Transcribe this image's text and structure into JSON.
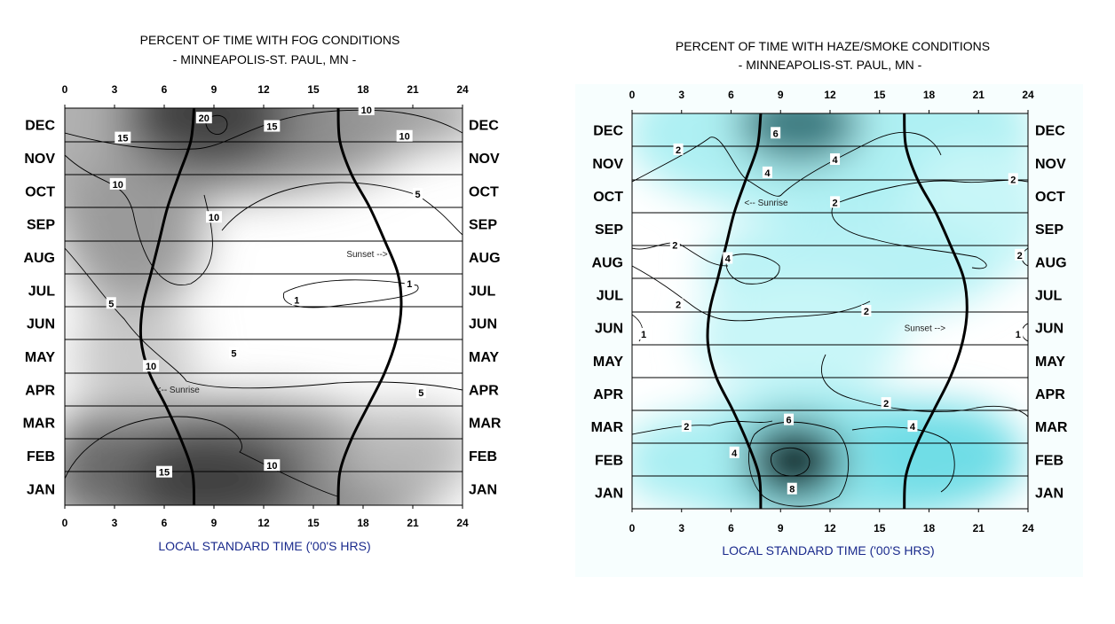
{
  "colors": {
    "fog_dark": "#303030",
    "fog_light": "#ffffff",
    "haze_dark": "#0a0a0a",
    "haze_mid": "#8ee8ee",
    "haze_light": "#ffffff",
    "title_color": "#000000",
    "xlabel_color": "#1a2a8c"
  },
  "chart_data": [
    {
      "type": "heatmap",
      "title": "PERCENT OF TIME WITH FOG CONDITIONS",
      "subtitle": "- MINNEAPOLIS-ST. PAUL,  MN -",
      "xlabel": "LOCAL STANDARD TIME ('00'S HRS)",
      "ylabel": "",
      "x_ticks": [
        "0",
        "3",
        "6",
        "9",
        "12",
        "15",
        "18",
        "21",
        "24"
      ],
      "xlim": [
        0,
        24
      ],
      "months": [
        "DEC",
        "NOV",
        "OCT",
        "SEP",
        "AUG",
        "JUL",
        "JUN",
        "MAY",
        "APR",
        "MAR",
        "FEB",
        "JAN"
      ],
      "contour_labels": [
        {
          "text": "20",
          "x": 8.4,
          "m": 0.3
        },
        {
          "text": "15",
          "x": 3.5,
          "m": 0.9
        },
        {
          "text": "15",
          "x": 12.5,
          "m": 0.55
        },
        {
          "text": "10",
          "x": 18.2,
          "m": 0.05
        },
        {
          "text": "10",
          "x": 20.5,
          "m": 0.85
        },
        {
          "text": "10",
          "x": 3.2,
          "m": 2.3
        },
        {
          "text": "10",
          "x": 9.0,
          "m": 3.3
        },
        {
          "text": "5",
          "x": 21.3,
          "m": 2.6
        },
        {
          "text": "1",
          "x": 20.8,
          "m": 5.3
        },
        {
          "text": "1",
          "x": 14.0,
          "m": 5.8
        },
        {
          "text": "5",
          "x": 2.8,
          "m": 5.9
        },
        {
          "text": "5",
          "x": 10.2,
          "m": 7.4
        },
        {
          "text": "10",
          "x": 5.2,
          "m": 7.8
        },
        {
          "text": "5",
          "x": 21.5,
          "m": 8.6
        },
        {
          "text": "10",
          "x": 12.5,
          "m": 10.8
        },
        {
          "text": "15",
          "x": 6.0,
          "m": 11.0
        }
      ],
      "sunrise_label": "<-- Sunrise",
      "sunrise_label_pos": {
        "x": 5.5,
        "m": 8.6
      },
      "sunset_label": "Sunset -->",
      "sunset_label_pos": {
        "x": 17.0,
        "m": 4.5
      },
      "sunrise_curve": [
        {
          "m": 0,
          "x": 7.8
        },
        {
          "m": 1,
          "x": 7.6
        },
        {
          "m": 2,
          "x": 6.9
        },
        {
          "m": 3,
          "x": 6.2
        },
        {
          "m": 4,
          "x": 5.7
        },
        {
          "m": 5,
          "x": 5.2
        },
        {
          "m": 6,
          "x": 4.7
        },
        {
          "m": 7,
          "x": 4.6
        },
        {
          "m": 8,
          "x": 5.1
        },
        {
          "m": 9,
          "x": 6.1
        },
        {
          "m": 10,
          "x": 7.0
        },
        {
          "m": 11,
          "x": 7.7
        },
        {
          "m": 12,
          "x": 7.8
        }
      ],
      "sunset_curve": [
        {
          "m": 0,
          "x": 16.5
        },
        {
          "m": 1,
          "x": 16.6
        },
        {
          "m": 2,
          "x": 17.3
        },
        {
          "m": 3,
          "x": 18.4
        },
        {
          "m": 4,
          "x": 19.3
        },
        {
          "m": 5,
          "x": 20.1
        },
        {
          "m": 6,
          "x": 20.3
        },
        {
          "m": 7,
          "x": 20.0
        },
        {
          "m": 8,
          "x": 19.3
        },
        {
          "m": 9,
          "x": 18.3
        },
        {
          "m": 10,
          "x": 17.3
        },
        {
          "m": 11,
          "x": 16.6
        },
        {
          "m": 12,
          "x": 16.5
        }
      ]
    },
    {
      "type": "heatmap",
      "title": "PERCENT OF TIME WITH HAZE/SMOKE CONDITIONS",
      "subtitle": "- MINNEAPOLIS-ST. PAUL,  MN -",
      "xlabel": "LOCAL STANDARD TIME ('00'S HRS)",
      "ylabel": "",
      "x_ticks": [
        "0",
        "3",
        "6",
        "9",
        "12",
        "15",
        "18",
        "21",
        "24"
      ],
      "xlim": [
        0,
        24
      ],
      "months": [
        "DEC",
        "NOV",
        "OCT",
        "SEP",
        "AUG",
        "JUL",
        "JUN",
        "MAY",
        "APR",
        "MAR",
        "FEB",
        "JAN"
      ],
      "contour_labels": [
        {
          "text": "6",
          "x": 8.7,
          "m": 0.6
        },
        {
          "text": "2",
          "x": 2.8,
          "m": 1.1
        },
        {
          "text": "4",
          "x": 12.3,
          "m": 1.4
        },
        {
          "text": "4",
          "x": 8.2,
          "m": 1.8
        },
        {
          "text": "2",
          "x": 23.1,
          "m": 2.0
        },
        {
          "text": "2",
          "x": 12.3,
          "m": 2.7
        },
        {
          "text": "2",
          "x": 2.6,
          "m": 4.0
        },
        {
          "text": "4",
          "x": 5.8,
          "m": 4.4
        },
        {
          "text": "2",
          "x": 23.5,
          "m": 4.3
        },
        {
          "text": "2",
          "x": 2.8,
          "m": 5.8
        },
        {
          "text": "2",
          "x": 14.2,
          "m": 6.0
        },
        {
          "text": "1",
          "x": 0.7,
          "m": 6.7
        },
        {
          "text": "1",
          "x": 23.4,
          "m": 6.7
        },
        {
          "text": "2",
          "x": 15.4,
          "m": 8.8
        },
        {
          "text": "2",
          "x": 3.3,
          "m": 9.5
        },
        {
          "text": "6",
          "x": 9.5,
          "m": 9.3
        },
        {
          "text": "4",
          "x": 17.0,
          "m": 9.5
        },
        {
          "text": "4",
          "x": 6.2,
          "m": 10.3
        },
        {
          "text": "8",
          "x": 9.7,
          "m": 11.4
        }
      ],
      "sunrise_label": "<-- Sunrise",
      "sunrise_label_pos": {
        "x": 6.8,
        "m": 2.8
      },
      "sunset_label": "Sunset -->",
      "sunset_label_pos": {
        "x": 16.5,
        "m": 6.6
      },
      "sunrise_curve": [
        {
          "m": 0,
          "x": 7.8
        },
        {
          "m": 1,
          "x": 7.6
        },
        {
          "m": 2,
          "x": 6.9
        },
        {
          "m": 3,
          "x": 6.2
        },
        {
          "m": 4,
          "x": 5.7
        },
        {
          "m": 5,
          "x": 5.2
        },
        {
          "m": 6,
          "x": 4.7
        },
        {
          "m": 7,
          "x": 4.6
        },
        {
          "m": 8,
          "x": 5.1
        },
        {
          "m": 9,
          "x": 6.1
        },
        {
          "m": 10,
          "x": 7.0
        },
        {
          "m": 11,
          "x": 7.7
        },
        {
          "m": 12,
          "x": 7.8
        }
      ],
      "sunset_curve": [
        {
          "m": 0,
          "x": 16.5
        },
        {
          "m": 1,
          "x": 16.6
        },
        {
          "m": 2,
          "x": 17.3
        },
        {
          "m": 3,
          "x": 18.4
        },
        {
          "m": 4,
          "x": 19.3
        },
        {
          "m": 5,
          "x": 20.1
        },
        {
          "m": 6,
          "x": 20.3
        },
        {
          "m": 7,
          "x": 20.0
        },
        {
          "m": 8,
          "x": 19.3
        },
        {
          "m": 9,
          "x": 18.3
        },
        {
          "m": 10,
          "x": 17.3
        },
        {
          "m": 11,
          "x": 16.6
        },
        {
          "m": 12,
          "x": 16.5
        }
      ]
    }
  ]
}
